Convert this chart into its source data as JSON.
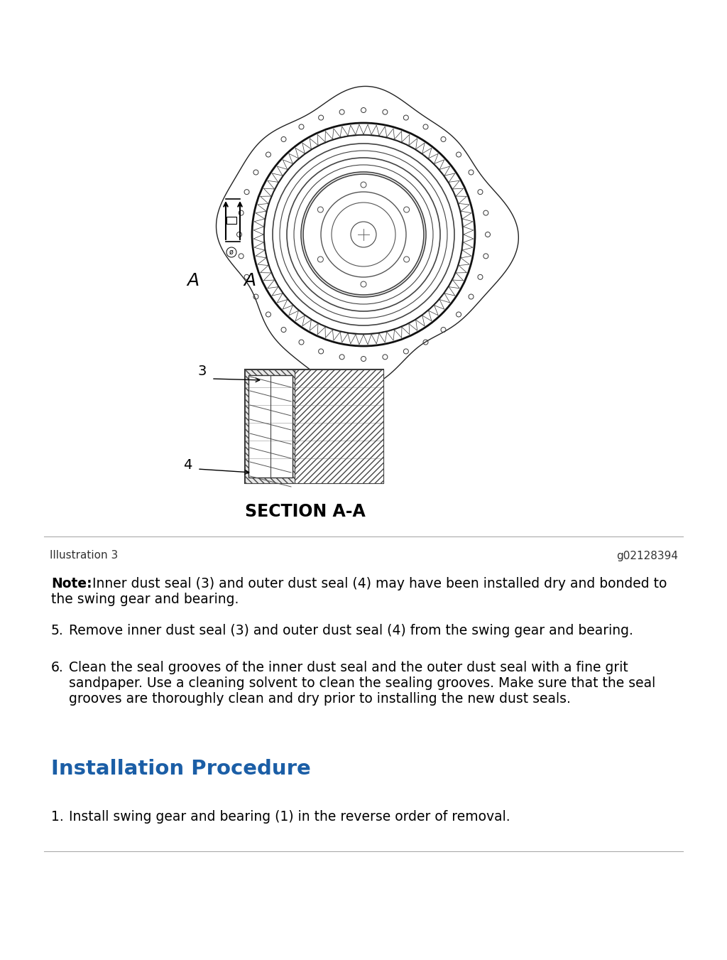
{
  "bg_color": "#ffffff",
  "illustration_label": "Illustration 3",
  "illustration_id": "g02128394",
  "section_label": "SECTION A-A",
  "note_bold": "Note:",
  "note_text": "Inner dust seal (3) and outer dust seal (4) may have been installed dry and bonded to the swing gear and bearing.",
  "item5_num": "5.",
  "item5": "Remove inner dust seal (3) and outer dust seal (4) from the swing gear and bearing.",
  "item6_num": "6.",
  "item6_line1": "Clean the seal grooves of the inner dust seal and the outer dust seal with a fine grit",
  "item6_line2": "sandpaper. Use a cleaning solvent to clean the sealing grooves. Make sure that the seal",
  "item6_line3": "grooves are thoroughly clean and dry prior to installing the new dust seals.",
  "heading": "Installation Procedure",
  "heading_color": "#1B5EA6",
  "item1_num": "1.",
  "item1": "Install swing gear and bearing (1) in the reverse order of removal.",
  "body_fontsize": 13.5,
  "small_fontsize": 11,
  "heading_fontsize": 21,
  "label_fontsize": 14,
  "section_fontsize": 17
}
